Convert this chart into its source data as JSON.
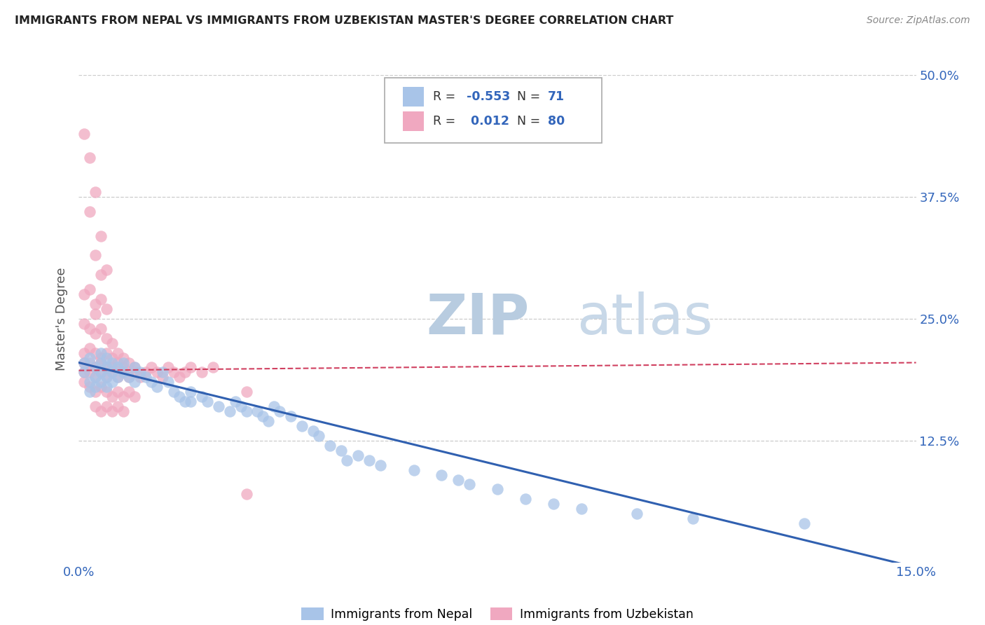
{
  "title": "IMMIGRANTS FROM NEPAL VS IMMIGRANTS FROM UZBEKISTAN MASTER'S DEGREE CORRELATION CHART",
  "source": "Source: ZipAtlas.com",
  "ylabel": "Master's Degree",
  "xlim": [
    0.0,
    0.15
  ],
  "ylim": [
    0.0,
    0.5
  ],
  "nepal_R": -0.553,
  "nepal_N": 71,
  "uzbekistan_R": 0.012,
  "uzbekistan_N": 80,
  "nepal_color": "#a8c4e8",
  "uzbekistan_color": "#f0a8c0",
  "nepal_line_color": "#3060b0",
  "uzbekistan_line_color": "#d04060",
  "watermark_zip_color": "#b8cce0",
  "watermark_atlas_color": "#c8d8e8",
  "legend_labels": [
    "Immigrants from Nepal",
    "Immigrants from Uzbekistan"
  ],
  "grid_color": "#cccccc",
  "nepal_scatter": [
    [
      0.001,
      0.205
    ],
    [
      0.001,
      0.195
    ],
    [
      0.002,
      0.21
    ],
    [
      0.002,
      0.185
    ],
    [
      0.002,
      0.175
    ],
    [
      0.003,
      0.2
    ],
    [
      0.003,
      0.19
    ],
    [
      0.003,
      0.18
    ],
    [
      0.004,
      0.215
    ],
    [
      0.004,
      0.205
    ],
    [
      0.004,
      0.195
    ],
    [
      0.004,
      0.185
    ],
    [
      0.005,
      0.21
    ],
    [
      0.005,
      0.2
    ],
    [
      0.005,
      0.19
    ],
    [
      0.005,
      0.18
    ],
    [
      0.006,
      0.205
    ],
    [
      0.006,
      0.195
    ],
    [
      0.006,
      0.185
    ],
    [
      0.007,
      0.2
    ],
    [
      0.007,
      0.19
    ],
    [
      0.008,
      0.205
    ],
    [
      0.008,
      0.195
    ],
    [
      0.009,
      0.19
    ],
    [
      0.01,
      0.2
    ],
    [
      0.01,
      0.185
    ],
    [
      0.011,
      0.195
    ],
    [
      0.012,
      0.19
    ],
    [
      0.013,
      0.185
    ],
    [
      0.014,
      0.18
    ],
    [
      0.015,
      0.195
    ],
    [
      0.016,
      0.185
    ],
    [
      0.017,
      0.175
    ],
    [
      0.018,
      0.17
    ],
    [
      0.019,
      0.165
    ],
    [
      0.02,
      0.175
    ],
    [
      0.02,
      0.165
    ],
    [
      0.022,
      0.17
    ],
    [
      0.023,
      0.165
    ],
    [
      0.025,
      0.16
    ],
    [
      0.027,
      0.155
    ],
    [
      0.028,
      0.165
    ],
    [
      0.029,
      0.16
    ],
    [
      0.03,
      0.155
    ],
    [
      0.032,
      0.155
    ],
    [
      0.033,
      0.15
    ],
    [
      0.034,
      0.145
    ],
    [
      0.035,
      0.16
    ],
    [
      0.036,
      0.155
    ],
    [
      0.038,
      0.15
    ],
    [
      0.04,
      0.14
    ],
    [
      0.042,
      0.135
    ],
    [
      0.043,
      0.13
    ],
    [
      0.045,
      0.12
    ],
    [
      0.047,
      0.115
    ],
    [
      0.048,
      0.105
    ],
    [
      0.05,
      0.11
    ],
    [
      0.052,
      0.105
    ],
    [
      0.054,
      0.1
    ],
    [
      0.06,
      0.095
    ],
    [
      0.065,
      0.09
    ],
    [
      0.068,
      0.085
    ],
    [
      0.07,
      0.08
    ],
    [
      0.075,
      0.075
    ],
    [
      0.08,
      0.065
    ],
    [
      0.085,
      0.06
    ],
    [
      0.09,
      0.055
    ],
    [
      0.1,
      0.05
    ],
    [
      0.11,
      0.045
    ],
    [
      0.13,
      0.04
    ]
  ],
  "uzbekistan_scatter": [
    [
      0.001,
      0.44
    ],
    [
      0.002,
      0.415
    ],
    [
      0.002,
      0.36
    ],
    [
      0.003,
      0.38
    ],
    [
      0.003,
      0.315
    ],
    [
      0.004,
      0.335
    ],
    [
      0.004,
      0.295
    ],
    [
      0.005,
      0.3
    ],
    [
      0.001,
      0.275
    ],
    [
      0.002,
      0.28
    ],
    [
      0.003,
      0.265
    ],
    [
      0.003,
      0.255
    ],
    [
      0.004,
      0.27
    ],
    [
      0.005,
      0.26
    ],
    [
      0.001,
      0.245
    ],
    [
      0.002,
      0.24
    ],
    [
      0.003,
      0.235
    ],
    [
      0.004,
      0.24
    ],
    [
      0.005,
      0.23
    ],
    [
      0.006,
      0.225
    ],
    [
      0.001,
      0.215
    ],
    [
      0.002,
      0.22
    ],
    [
      0.003,
      0.215
    ],
    [
      0.004,
      0.21
    ],
    [
      0.005,
      0.215
    ],
    [
      0.006,
      0.21
    ],
    [
      0.007,
      0.215
    ],
    [
      0.008,
      0.21
    ],
    [
      0.001,
      0.205
    ],
    [
      0.002,
      0.205
    ],
    [
      0.003,
      0.2
    ],
    [
      0.004,
      0.205
    ],
    [
      0.005,
      0.2
    ],
    [
      0.006,
      0.2
    ],
    [
      0.007,
      0.205
    ],
    [
      0.008,
      0.2
    ],
    [
      0.009,
      0.205
    ],
    [
      0.01,
      0.2
    ],
    [
      0.001,
      0.195
    ],
    [
      0.002,
      0.195
    ],
    [
      0.003,
      0.19
    ],
    [
      0.004,
      0.195
    ],
    [
      0.005,
      0.19
    ],
    [
      0.006,
      0.195
    ],
    [
      0.007,
      0.19
    ],
    [
      0.008,
      0.195
    ],
    [
      0.009,
      0.19
    ],
    [
      0.01,
      0.195
    ],
    [
      0.011,
      0.19
    ],
    [
      0.012,
      0.195
    ],
    [
      0.013,
      0.2
    ],
    [
      0.014,
      0.195
    ],
    [
      0.015,
      0.19
    ],
    [
      0.016,
      0.2
    ],
    [
      0.017,
      0.195
    ],
    [
      0.018,
      0.19
    ],
    [
      0.019,
      0.195
    ],
    [
      0.02,
      0.2
    ],
    [
      0.022,
      0.195
    ],
    [
      0.024,
      0.2
    ],
    [
      0.001,
      0.185
    ],
    [
      0.002,
      0.18
    ],
    [
      0.003,
      0.175
    ],
    [
      0.004,
      0.18
    ],
    [
      0.005,
      0.175
    ],
    [
      0.006,
      0.17
    ],
    [
      0.007,
      0.175
    ],
    [
      0.008,
      0.17
    ],
    [
      0.009,
      0.175
    ],
    [
      0.01,
      0.17
    ],
    [
      0.003,
      0.16
    ],
    [
      0.004,
      0.155
    ],
    [
      0.005,
      0.16
    ],
    [
      0.006,
      0.155
    ],
    [
      0.007,
      0.16
    ],
    [
      0.008,
      0.155
    ],
    [
      0.03,
      0.175
    ],
    [
      0.03,
      0.07
    ]
  ]
}
